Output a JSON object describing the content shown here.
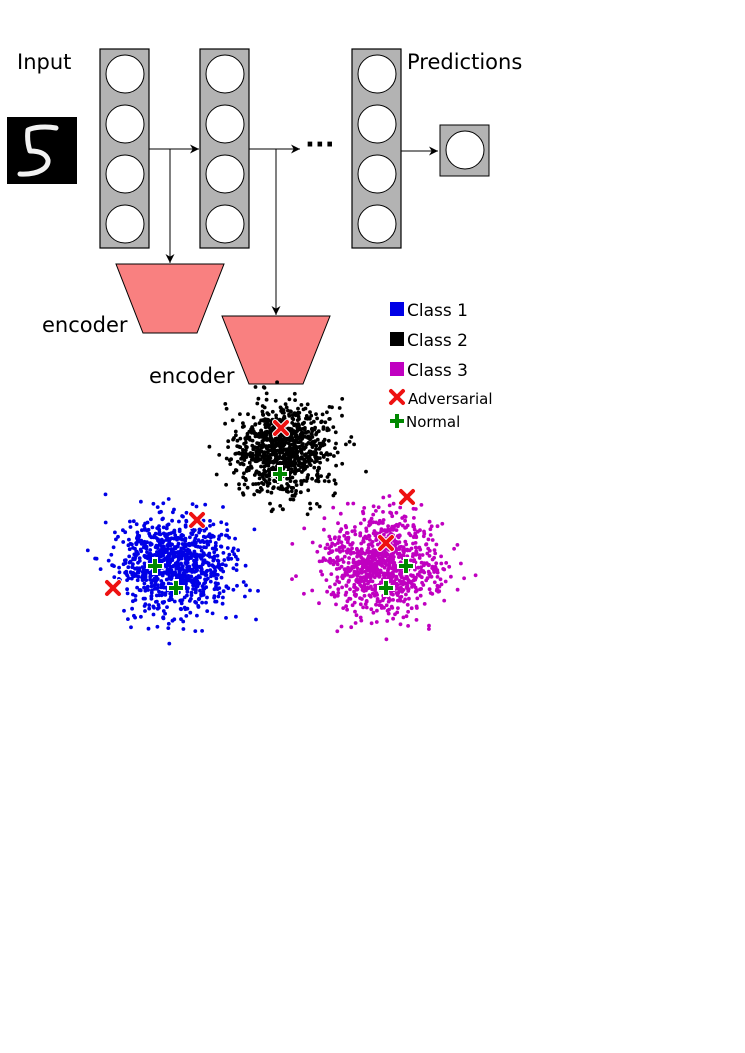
{
  "labels": {
    "input": "Input",
    "predictions": "Predictions",
    "ellipsis": "···",
    "encoder_1": "encoder",
    "encoder_2": "encoder"
  },
  "legend": {
    "class_1": "Class 1",
    "class_2": "Class 2",
    "class_3": "Class 3",
    "adversarial": "Adversarial",
    "normal": "Normal"
  },
  "colors": {
    "class_1": "#0000e6",
    "class_2": "#000000",
    "class_3": "#c000c0",
    "adversarial": "#ee1111",
    "normal": "#008800",
    "encoder_fill": "#f98080",
    "layer_fill": "#b3b3b3"
  },
  "icons": {
    "input_digit": "handwritten-digit-five",
    "adversarial_marker": "red-x-icon",
    "normal_marker": "green-plus-icon"
  }
}
